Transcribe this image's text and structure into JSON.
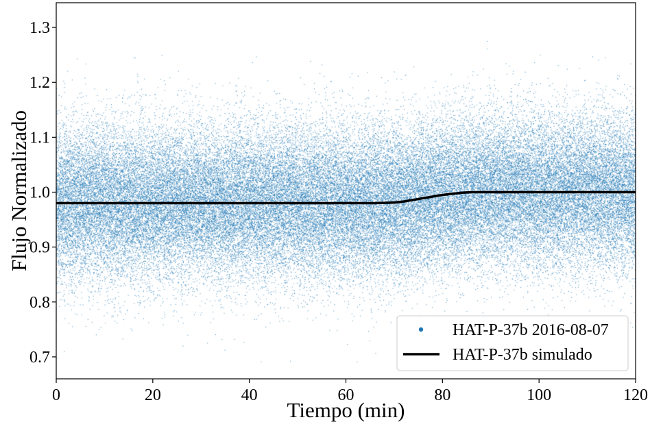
{
  "chart_data": {
    "type": "scatter",
    "xlabel": "Tiempo (min)",
    "ylabel": "Flujo Normalizado",
    "xlim": [
      0,
      120
    ],
    "ylim": [
      0.66,
      1.345
    ],
    "xticks": [
      0,
      20,
      40,
      60,
      80,
      100,
      120
    ],
    "yticks": [
      0.7,
      0.8,
      0.9,
      1.0,
      1.1,
      1.2,
      1.3
    ],
    "grid": false,
    "legend_position": "lower-right",
    "series": [
      {
        "name": "HAT-P-37b 2016-08-07",
        "kind": "points",
        "color": "#1f77b4",
        "x_range": [
          0,
          120
        ],
        "point_count": 60000,
        "mean_shape": "follows simulated curve",
        "noise_sigma": 0.07,
        "visible_range": [
          0.69,
          1.32
        ]
      },
      {
        "name": "HAT-P-37b simulado",
        "kind": "line",
        "color": "#000000",
        "x": [
          0,
          10,
          20,
          30,
          40,
          50,
          60,
          66,
          70,
          72,
          74,
          76,
          78,
          80,
          82,
          84,
          86,
          90,
          100,
          110,
          120
        ],
        "y": [
          0.98,
          0.98,
          0.98,
          0.98,
          0.98,
          0.98,
          0.98,
          0.98,
          0.981,
          0.983,
          0.986,
          0.989,
          0.992,
          0.995,
          0.997,
          0.999,
          1.0,
          1.0,
          1.0,
          1.0,
          1.0
        ]
      }
    ]
  }
}
